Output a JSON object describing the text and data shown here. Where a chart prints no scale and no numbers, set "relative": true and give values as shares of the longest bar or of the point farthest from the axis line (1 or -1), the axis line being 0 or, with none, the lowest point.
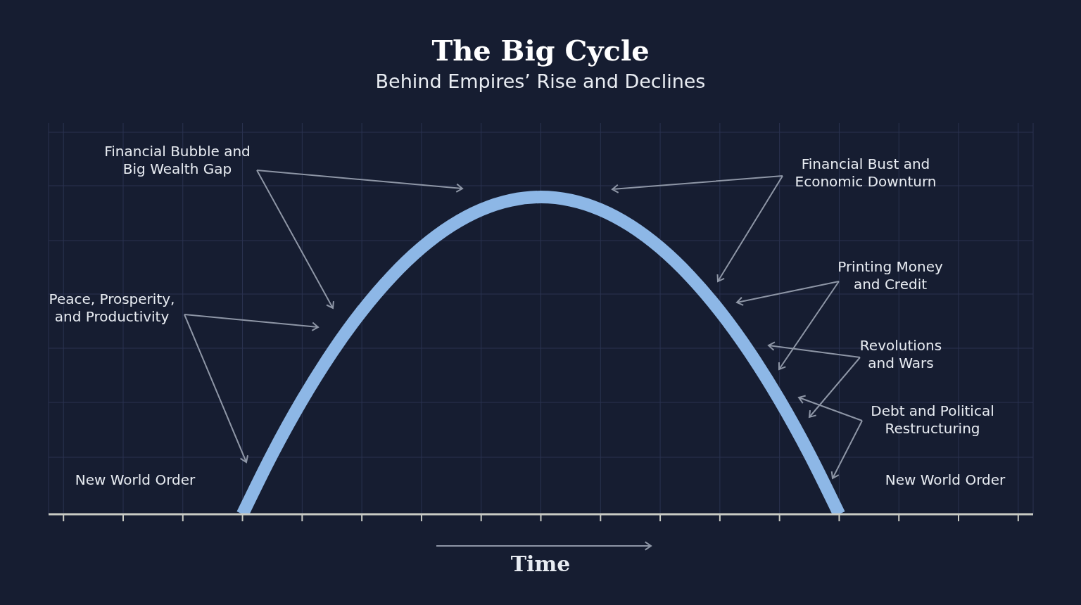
{
  "chart_data": {
    "type": "line",
    "title": "The Big Cycle",
    "subtitle": "Behind Empires’ Rise and Declines",
    "xlabel": "Time",
    "relative": true,
    "grid": true,
    "marker": "none",
    "line_style": "solid",
    "categories": [
      null,
      null,
      null,
      null,
      null,
      null,
      null,
      null,
      null,
      null,
      null,
      null,
      null,
      null,
      null,
      null,
      null,
      null,
      null,
      null,
      null,
      null,
      null,
      null,
      null,
      null,
      null,
      null,
      null,
      null,
      null,
      null,
      null
    ],
    "series": [
      {
        "color": "#8db7e6",
        "values": [
          null,
          null,
          null,
          null,
          null,
          null,
          0,
          0.19,
          0.36,
          0.51,
          0.64,
          0.75,
          0.84,
          0.91,
          0.96,
          0.99,
          1,
          0.99,
          0.96,
          0.91,
          0.84,
          0.75,
          0.64,
          0.51,
          0.36,
          0.19,
          0,
          null,
          null,
          null,
          null,
          null,
          null
        ]
      }
    ],
    "annotations": [
      "Financial Bubble and\nBig Wealth Gap",
      "Peace, Prosperity,\nand Productivity",
      "New World Order",
      "Financial Bust and\nEconomic Downturn",
      "Printing Money\nand Credit",
      "Revolutions\nand Wars",
      "Debt and Political\nRestructuring",
      "New World Order"
    ]
  }
}
